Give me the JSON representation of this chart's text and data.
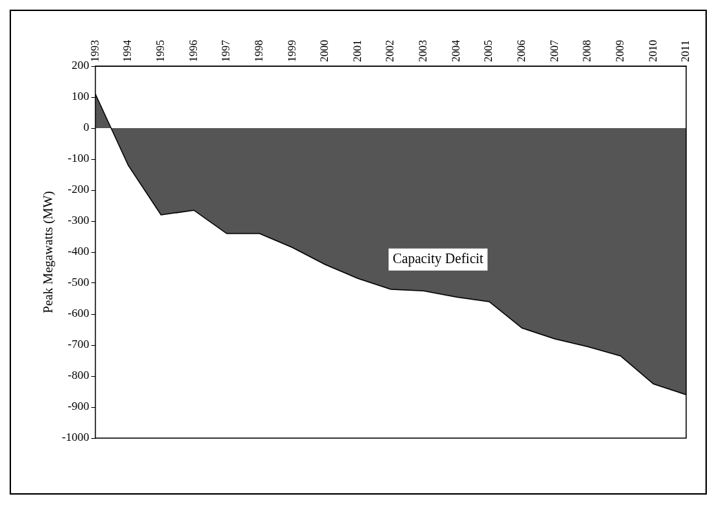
{
  "chart_data": {
    "type": "area",
    "ylabel": "Peak Megawatts (MW)",
    "categories": [
      "1993",
      "1994",
      "1995",
      "1996",
      "1997",
      "1998",
      "1999",
      "2000",
      "2001",
      "2002",
      "2003",
      "2004",
      "2005",
      "2006",
      "2007",
      "2008",
      "2009",
      "2010",
      "2011"
    ],
    "series": [
      {
        "color": "#555555",
        "values": [
          110,
          -120,
          -280,
          -265,
          -340,
          -340,
          -385,
          -440,
          -485,
          -520,
          -525,
          -545,
          -560,
          -645,
          -680,
          -705,
          -735,
          -825,
          -860
        ]
      }
    ],
    "ylim": [
      -1000,
      200
    ],
    "yticks": [
      -1000,
      -900,
      -800,
      -700,
      -600,
      -500,
      -400,
      -300,
      -200,
      -100,
      0,
      100,
      200
    ],
    "grid": false,
    "legend": false,
    "annotations": [
      "Capacity Deficit"
    ]
  }
}
